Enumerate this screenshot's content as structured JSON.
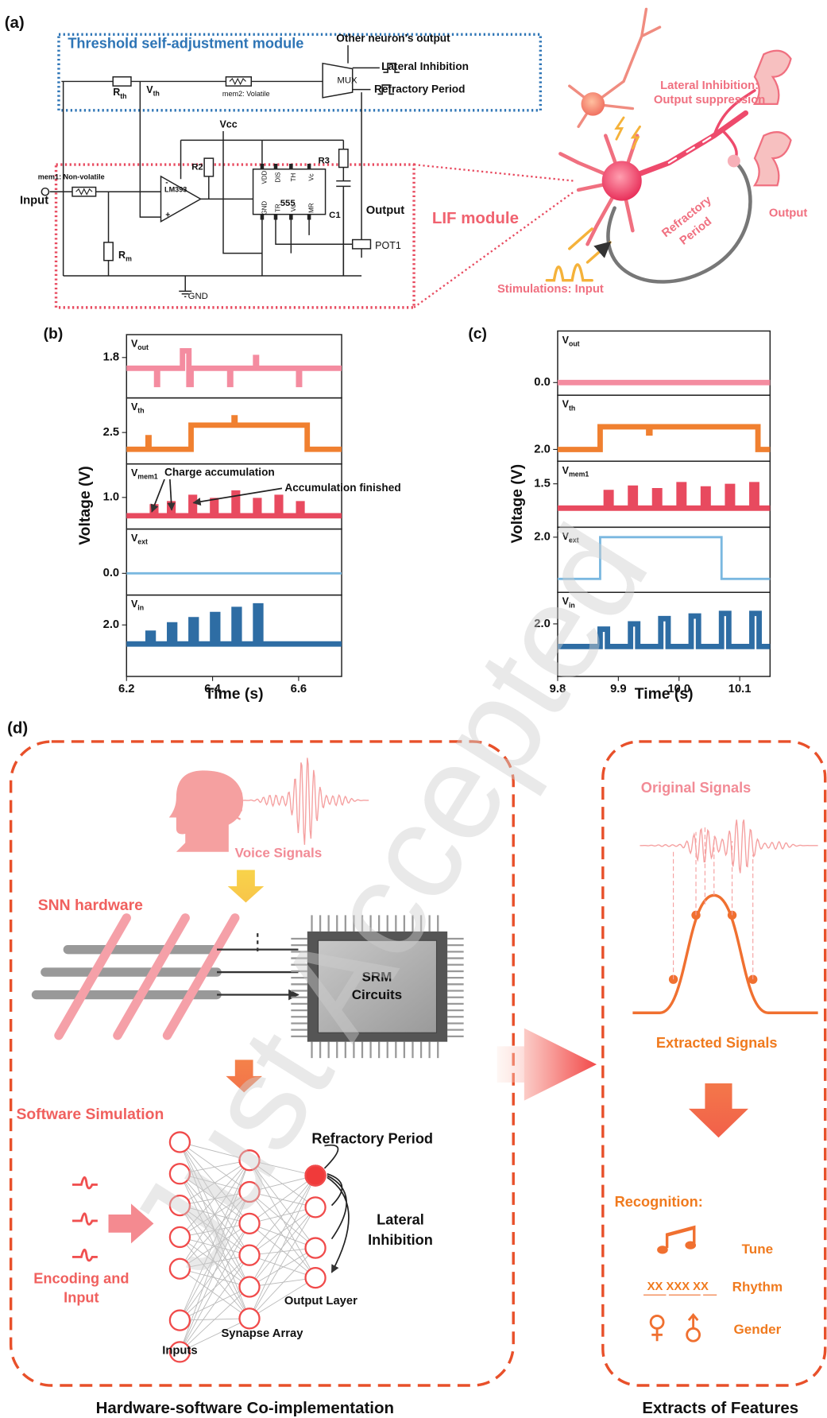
{
  "panel_a": {
    "label": "(a)",
    "threshold_module": "Threshold self-adjustment module",
    "other_output": "Other neuron's output",
    "lateral_inhibition": "Lateral Inhibition",
    "refractory_period": "Refractory Period",
    "mux": "MUX",
    "rth": {
      "main": "R",
      "sub": "th"
    },
    "vth": {
      "main": "V",
      "sub": "th"
    },
    "mem2": "mem2: Volatile",
    "vcc": "Vcc",
    "r2": "R2",
    "r3": "R3",
    "mem1": "mem1: Non-volatile",
    "input": "Input",
    "lm393": "LM393",
    "plus": "+",
    "minus": "-",
    "timer": "555",
    "pins": [
      "VDD",
      "DIS",
      "TH",
      "Vc",
      "GND",
      "TR",
      "Vo",
      "MR"
    ],
    "c1": "C1",
    "output": "Output",
    "pot1": "POT1",
    "rm": {
      "main": "R",
      "sub": "m"
    },
    "gnd": "GND",
    "lif_module": "LIF module",
    "neuron_lateral": [
      "Lateral Inhibition:",
      "Output suppression"
    ],
    "neuron_refractory": [
      "Refractory",
      "Period"
    ],
    "neuron_output": "Output",
    "stimulations": "Stimulations: Input"
  },
  "chart_data": [
    {
      "type": "line",
      "label": "(b)",
      "ylabel": "Voltage (V)",
      "xlabel": "Time (s)",
      "xlim": [
        6.2,
        6.7
      ],
      "xticks": [
        6.2,
        6.4,
        6.6
      ],
      "annotations": [
        "Charge accumulation",
        "Accumulation finished"
      ],
      "panels": [
        {
          "name": {
            "main": "V",
            "sub": "out"
          },
          "color": "#f48ca0",
          "ylim": [
            1.5,
            1.97
          ],
          "yticks": [
            1.8
          ],
          "x": [
            6.2,
            6.27,
            6.27,
            6.272,
            6.272,
            6.33,
            6.33,
            6.345,
            6.345,
            6.35,
            6.35,
            6.44,
            6.44,
            6.442,
            6.442,
            6.5,
            6.5,
            6.502,
            6.502,
            6.6,
            6.6,
            6.602,
            6.602,
            6.7
          ],
          "values": [
            1.72,
            1.72,
            1.6,
            1.6,
            1.72,
            1.72,
            1.85,
            1.85,
            1.6,
            1.6,
            1.72,
            1.72,
            1.6,
            1.6,
            1.72,
            1.72,
            1.8,
            1.8,
            1.72,
            1.72,
            1.6,
            1.6,
            1.72,
            1.72
          ]
        },
        {
          "name": {
            "main": "V",
            "sub": "th"
          },
          "color": "#f08030",
          "ylim": [
            2.2,
            2.83
          ],
          "yticks": [
            2.5
          ],
          "x": [
            6.2,
            6.25,
            6.25,
            6.252,
            6.252,
            6.35,
            6.35,
            6.45,
            6.45,
            6.452,
            6.452,
            6.62,
            6.62,
            6.7
          ],
          "values": [
            2.34,
            2.34,
            2.45,
            2.45,
            2.34,
            2.34,
            2.57,
            2.57,
            2.64,
            2.64,
            2.57,
            2.57,
            2.34,
            2.34
          ]
        },
        {
          "name": {
            "main": "V",
            "sub": "mem1"
          },
          "color": "#e84a5f",
          "ylim": [
            0.5,
            1.53
          ],
          "yticks": [
            {
              "value": 1,
              "label": "1.0"
            }
          ],
          "x": [
            6.2,
            6.26,
            6.26,
            6.268,
            6.268,
            6.3,
            6.3,
            6.308,
            6.308,
            6.35,
            6.35,
            6.358,
            6.358,
            6.4,
            6.4,
            6.408,
            6.408,
            6.45,
            6.45,
            6.458,
            6.458,
            6.5,
            6.5,
            6.508,
            6.508,
            6.55,
            6.55,
            6.558,
            6.558,
            6.6,
            6.6,
            6.608,
            6.608,
            6.7
          ],
          "values": [
            0.71,
            0.71,
            0.85,
            0.85,
            0.71,
            0.71,
            0.9,
            0.9,
            0.71,
            0.71,
            1.0,
            1.0,
            0.71,
            0.71,
            0.95,
            0.95,
            0.71,
            0.71,
            1.07,
            1.07,
            0.71,
            0.71,
            0.95,
            0.95,
            0.71,
            0.71,
            1.0,
            1.0,
            0.71,
            0.71,
            0.9,
            0.9,
            0.71,
            0.71
          ]
        },
        {
          "name": {
            "main": "V",
            "sub": "ext"
          },
          "color": "#7ab8e0",
          "ylim": [
            -1,
            2.04
          ],
          "yticks": [
            {
              "value": 0,
              "label": "0.0"
            }
          ],
          "x": [
            6.2,
            6.7
          ],
          "values": [
            0,
            0
          ]
        },
        {
          "name": {
            "main": "V",
            "sub": "in"
          },
          "color": "#2e6da4",
          "ylim": [
            1,
            2.58
          ],
          "yticks": [
            {
              "value": 2,
              "label": "2.0"
            }
          ],
          "x": [
            6.2,
            6.25,
            6.25,
            6.262,
            6.262,
            6.3,
            6.3,
            6.312,
            6.312,
            6.35,
            6.35,
            6.362,
            6.362,
            6.4,
            6.4,
            6.412,
            6.412,
            6.45,
            6.45,
            6.462,
            6.462,
            6.5,
            6.5,
            6.512,
            6.512,
            6.7
          ],
          "values": [
            1.63,
            1.63,
            1.84,
            1.84,
            1.63,
            1.63,
            2.0,
            2.0,
            1.63,
            1.63,
            2.1,
            2.1,
            1.63,
            1.63,
            2.2,
            2.2,
            1.63,
            1.63,
            2.3,
            2.3,
            1.63,
            1.63,
            2.37,
            2.37,
            1.63,
            1.63
          ]
        }
      ]
    },
    {
      "type": "line",
      "label": "(c)",
      "ylabel": "Voltage (V)",
      "xlabel": "Time (s)",
      "xlim": [
        9.8,
        10.15
      ],
      "xticks": [
        9.8,
        9.9,
        {
          "value": 10,
          "label": "10.0"
        },
        10.1
      ],
      "panels": [
        {
          "name": {
            "main": "V",
            "sub": "out"
          },
          "color": "#f48ca0",
          "ylim": [
            -0.4,
            1.63
          ],
          "yticks": [
            {
              "value": 0,
              "label": "0.0"
            }
          ],
          "x": [
            9.8,
            10.15
          ],
          "values": [
            0,
            0
          ]
        },
        {
          "name": {
            "main": "V",
            "sub": "th"
          },
          "color": "#f08030",
          "ylim": [
            1.5,
            4.3
          ],
          "yticks": [
            {
              "value": 2,
              "label": "2.0"
            }
          ],
          "x": [
            9.8,
            9.87,
            9.87,
            9.95,
            9.95,
            9.952,
            9.952,
            10.13,
            10.13,
            10.15
          ],
          "values": [
            2.0,
            2.0,
            2.96,
            2.96,
            2.7,
            2.7,
            2.96,
            2.96,
            2.0,
            2.0
          ]
        },
        {
          "name": {
            "main": "V",
            "sub": "mem1"
          },
          "color": "#e84a5f",
          "ylim": [
            1,
            1.76
          ],
          "yticks": [
            1.5
          ],
          "x": [
            9.8,
            9.88,
            9.88,
            9.888,
            9.888,
            9.92,
            9.92,
            9.928,
            9.928,
            9.96,
            9.96,
            9.968,
            9.968,
            10.0,
            10.0,
            10.008,
            10.008,
            10.04,
            10.04,
            10.048,
            10.048,
            10.08,
            10.08,
            10.088,
            10.088,
            10.12,
            10.12,
            10.128,
            10.128,
            10.15
          ],
          "values": [
            1.22,
            1.22,
            1.4,
            1.4,
            1.22,
            1.22,
            1.45,
            1.45,
            1.22,
            1.22,
            1.42,
            1.42,
            1.22,
            1.22,
            1.49,
            1.49,
            1.22,
            1.22,
            1.44,
            1.44,
            1.22,
            1.22,
            1.47,
            1.47,
            1.22,
            1.22,
            1.49,
            1.49,
            1.22,
            1.22
          ]
        },
        {
          "name": {
            "main": "V",
            "sub": "ext"
          },
          "color": "#7ab8e0",
          "ylim": [
            0,
            2.36
          ],
          "yticks": [
            {
              "value": 2,
              "label": "2.0"
            }
          ],
          "x": [
            9.8,
            9.87,
            9.87,
            10.07,
            10.07,
            10.15
          ],
          "values": [
            0.49,
            0.49,
            2.0,
            2.0,
            0.49,
            0.49
          ]
        },
        {
          "name": {
            "main": "V",
            "sub": "in"
          },
          "color": "#2e6da4",
          "ylim": [
            1,
            2.6
          ],
          "yticks": [
            {
              "value": 2,
              "label": "2.0"
            }
          ],
          "x": [
            9.8,
            9.87,
            9.87,
            9.882,
            9.882,
            9.92,
            9.92,
            9.932,
            9.932,
            9.97,
            9.97,
            9.982,
            9.982,
            10.02,
            10.02,
            10.032,
            10.032,
            10.07,
            10.07,
            10.082,
            10.082,
            10.12,
            10.12,
            10.132,
            10.132,
            10.15
          ],
          "values": [
            1.57,
            1.57,
            1.9,
            1.9,
            1.57,
            1.57,
            2.0,
            2.0,
            1.57,
            1.57,
            2.1,
            2.1,
            1.57,
            1.57,
            2.15,
            2.15,
            1.57,
            1.57,
            2.2,
            2.2,
            1.57,
            1.57,
            2.2,
            2.2,
            1.57,
            1.57
          ]
        }
      ]
    }
  ],
  "panel_d": {
    "label": "(d)",
    "voice_signals": "Voice Signals",
    "snn_hardware": "SNN hardware",
    "srm_circuits": [
      "SRM",
      "Circuits"
    ],
    "software_simulation": "Software Simulation",
    "refractory_period": "Refractory Period",
    "lateral_inhibition": [
      "Lateral",
      "Inhibition"
    ],
    "encoding_input": [
      "Encoding and",
      "Input"
    ],
    "output_layer": "Output Layer",
    "synapse_array": "Synapse Array",
    "inputs": "Inputs",
    "original_signals": "Original Signals",
    "extracted_signals": "Extracted Signals",
    "recognition": "Recognition:",
    "tune": "Tune",
    "rhythm_pattern": "XX XXX XX",
    "rhythm": "Rhythm",
    "gender": "Gender",
    "left_caption": "Hardware-software Co-implementation",
    "right_caption": "Extracts of Features"
  },
  "watermark": "Just Accepted"
}
